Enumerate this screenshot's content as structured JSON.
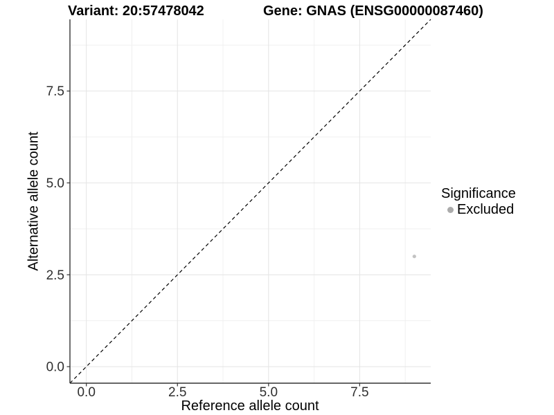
{
  "chart_data": {
    "type": "scatter",
    "title_left": "Variant: 20:57478042",
    "title_right": "Gene: GNAS (ENSG00000087460)",
    "xlabel": "Reference allele count",
    "ylabel": "Alternative allele count",
    "xlim": [
      -0.45,
      9.45
    ],
    "ylim": [
      -0.45,
      9.45
    ],
    "x_tick_labels": [
      "0.0",
      "2.5",
      "5.0",
      "7.5"
    ],
    "x_tick_values": [
      0,
      2.5,
      5,
      7.5
    ],
    "y_tick_labels": [
      "0.0",
      "2.5",
      "5.0",
      "7.5"
    ],
    "y_tick_values": [
      0,
      2.5,
      5,
      7.5
    ],
    "minor_tick_values": [
      1.25,
      3.75,
      6.25,
      8.75
    ],
    "grid": {
      "show": true,
      "major_color": "#e4e4e4",
      "minor_color": "#f0f0f0"
    },
    "identity_line": {
      "equation": "y = x",
      "style": "dashed",
      "color": "#000000"
    },
    "series": [
      {
        "name": "Excluded",
        "color": "#c3c3c3",
        "point_radius": 2.6,
        "points": [
          [
            9,
            3
          ]
        ]
      }
    ],
    "legend": {
      "title": "Significance",
      "position": "right",
      "items": [
        {
          "label": "Excluded",
          "color": "#ababab"
        }
      ]
    },
    "axis_style": {
      "line_color": "#333333",
      "tick_color": "#333333",
      "tick_label_color": "#2e2e2e",
      "background": "#ffffff"
    }
  }
}
